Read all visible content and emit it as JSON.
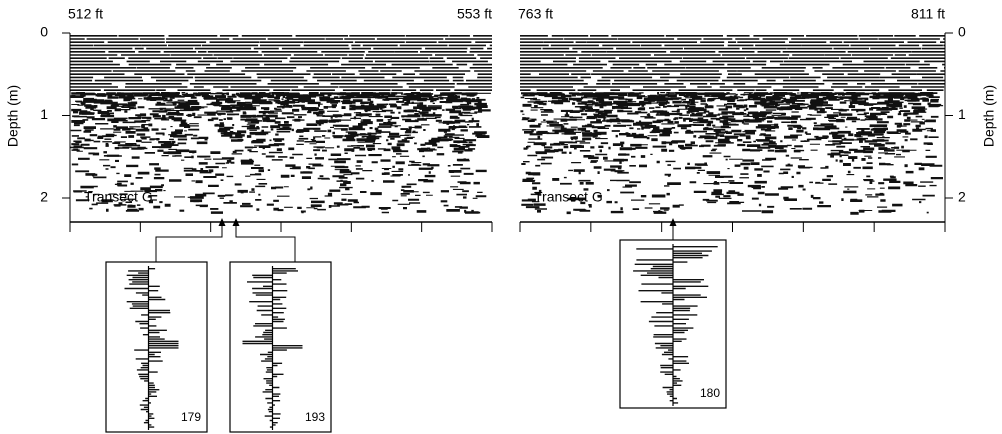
{
  "panels": [
    {
      "left_label": "512 ft",
      "right_label": "553 ft",
      "transect_label": "Transect G",
      "depth_label": "Depth (m)",
      "depth_ticks": [
        0,
        1,
        2
      ]
    },
    {
      "left_label": "763 ft",
      "right_label": "811 ft",
      "transect_label": "Transect G",
      "depth_label": "Depth (m)",
      "depth_ticks": [
        0,
        1,
        2
      ]
    }
  ],
  "traces": [
    {
      "label": "179"
    },
    {
      "label": "193"
    },
    {
      "label": "180"
    }
  ]
}
